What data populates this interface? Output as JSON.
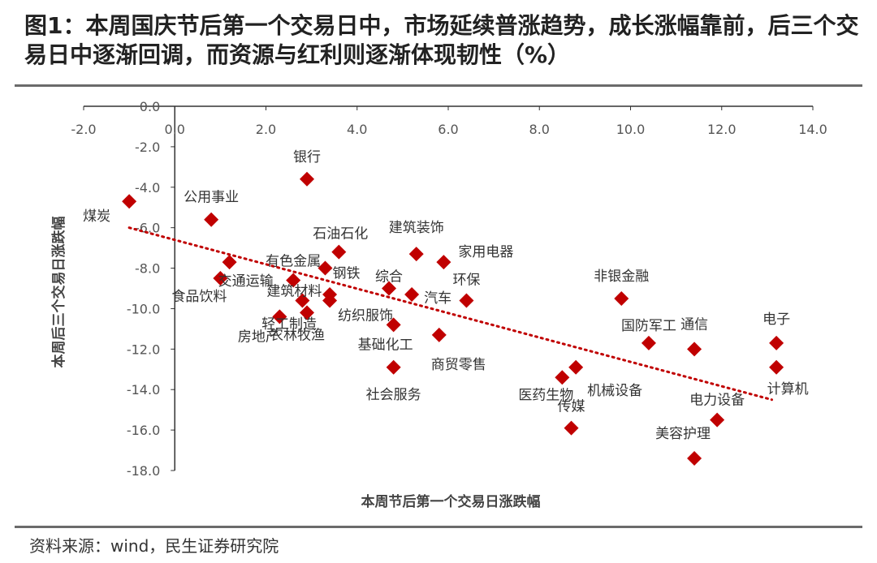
{
  "page": {
    "title": "图1：本周国庆节后第一个交易日中，市场延续普涨趋势，成长涨幅靠前，后三个交易日中逐渐回调，而资源与红利则逐渐体现韧性（%）",
    "source": "资料来源：wind，民生证券研究院"
  },
  "chart_data": {
    "type": "scatter",
    "title": "图1：本周国庆节后第一个交易日中，市场延续普涨趋势，成长涨幅靠前，后三个交易日中逐渐回调，而资源与红利则逐渐体现韧性（%）",
    "xlabel": "本周节后第一个交易日涨跌幅",
    "ylabel": "本周后三个交易日涨跌幅",
    "xlim": [
      -2.0,
      14.0
    ],
    "ylim": [
      -18.0,
      0.0
    ],
    "xticks": [
      "-2.0",
      "0.0",
      "2.0",
      "4.0",
      "6.0",
      "8.0",
      "10.0",
      "12.0",
      "14.0"
    ],
    "yticks": [
      "0.0",
      "-2.0",
      "-4.0",
      "-6.0",
      "-8.0",
      "-10.0",
      "-12.0",
      "-14.0",
      "-16.0",
      "-18.0"
    ],
    "marker_color": "#C00000",
    "trendline": {
      "style": "dotted",
      "color": "#C00000",
      "x": [
        -1.0,
        13.1
      ],
      "y": [
        -6.0,
        -14.5
      ]
    },
    "points": [
      {
        "name": "煤炭",
        "x": -1.0,
        "y": -4.7
      },
      {
        "name": "银行",
        "x": 2.9,
        "y": -3.6
      },
      {
        "name": "公用事业",
        "x": 0.8,
        "y": -5.6
      },
      {
        "name": "交通运输",
        "x": 1.2,
        "y": -7.7
      },
      {
        "name": "食品饮料",
        "x": 1.0,
        "y": -8.5
      },
      {
        "name": "有色金属",
        "x": 2.6,
        "y": -8.6
      },
      {
        "name": "建筑材料",
        "x": 2.8,
        "y": -9.6
      },
      {
        "name": "轻工制造",
        "x": 3.4,
        "y": -9.3
      },
      {
        "name": "房地产",
        "x": 2.3,
        "y": -10.4
      },
      {
        "name": "农林牧渔",
        "x": 2.9,
        "y": -10.2
      },
      {
        "name": "石油石化",
        "x": 3.6,
        "y": -7.2
      },
      {
        "name": "钢铁",
        "x": 3.3,
        "y": -8.0
      },
      {
        "name": "纺织服饰",
        "x": 3.4,
        "y": -9.6
      },
      {
        "name": "综合",
        "x": 4.7,
        "y": -9.0
      },
      {
        "name": "建筑装饰",
        "x": 5.3,
        "y": -7.3
      },
      {
        "name": "家用电器",
        "x": 5.9,
        "y": -7.7
      },
      {
        "name": "环保",
        "x": 6.4,
        "y": -9.6
      },
      {
        "name": "汽车",
        "x": 5.2,
        "y": -9.3
      },
      {
        "name": "基础化工",
        "x": 4.8,
        "y": -10.8
      },
      {
        "name": "商贸零售",
        "x": 5.8,
        "y": -11.3
      },
      {
        "name": "社会服务",
        "x": 4.8,
        "y": -12.9
      },
      {
        "name": "医药生物",
        "x": 8.5,
        "y": -13.4
      },
      {
        "name": "传媒",
        "x": 8.7,
        "y": -15.9
      },
      {
        "name": "机械设备",
        "x": 8.8,
        "y": -12.9
      },
      {
        "name": "非银金融",
        "x": 9.8,
        "y": -9.5
      },
      {
        "name": "国防军工",
        "x": 10.4,
        "y": -11.7
      },
      {
        "name": "通信",
        "x": 11.4,
        "y": -12.0
      },
      {
        "name": "电子",
        "x": 13.2,
        "y": -11.7
      },
      {
        "name": "计算机",
        "x": 13.2,
        "y": -12.9
      },
      {
        "name": "电力设备",
        "x": 11.9,
        "y": -15.5
      },
      {
        "name": "美容护理",
        "x": 11.4,
        "y": -17.4
      }
    ]
  }
}
